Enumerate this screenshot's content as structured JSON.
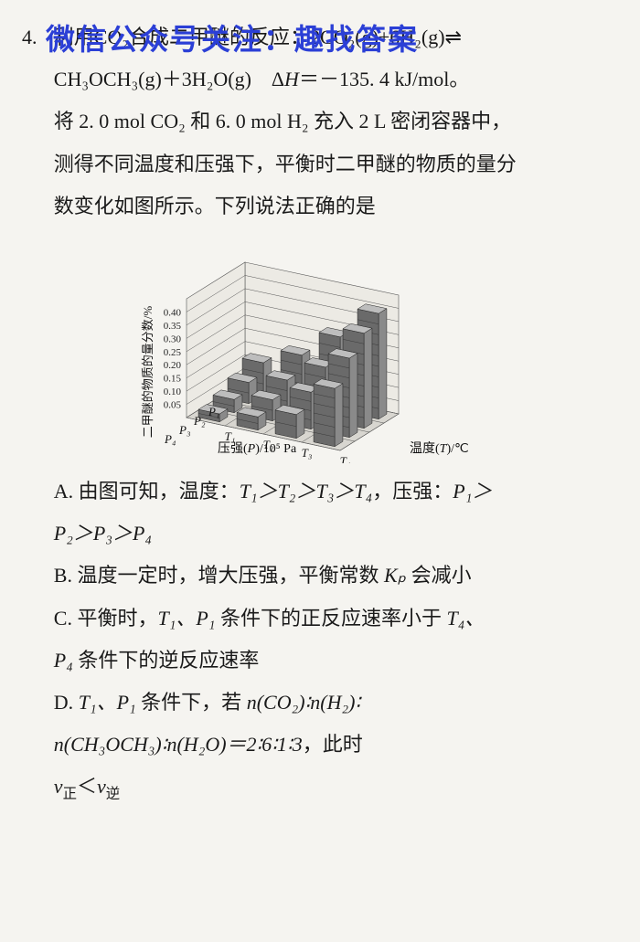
{
  "watermark": "微信公众号关注：趣找答案",
  "question_number": "4.",
  "stem_line1_a": "利用CO₂合成二甲醚的反应：2CO₂(g)+6H₂(g)⇌",
  "stem_line1_b": "CH₃OCH₃(g)＋3H₂O(g) Δ",
  "stem_line1_h": "H",
  "stem_line1_c": "＝－135. 4 kJ/mol。",
  "stem_line2": "将 2. 0 mol CO₂ 和 6. 0 mol H₂ 充入 2 L 密闭容器中，",
  "stem_line3": "测得不同温度和压强下，平衡时二甲醚的物质的量分",
  "stem_line4": "数变化如图所示。下列说法正确的是",
  "chart": {
    "type": "3d-bar",
    "y_label": "二甲醚的物质的量分数/%",
    "x1_label": "压强(",
    "x1_label_var": "P",
    "x1_label_unit": ")/10⁵ Pa",
    "x2_label": "温度(",
    "x2_label_var": "T",
    "x2_label_unit": ")/℃",
    "y_ticks": [
      "0.05",
      "0.10",
      "0.15",
      "0.20",
      "0.25",
      "0.30",
      "0.35",
      "0.40"
    ],
    "p_ticks": [
      "P₁",
      "P₂",
      "P₃",
      "P₄"
    ],
    "t_ticks": [
      "T₁",
      "T₂",
      "T₃",
      "T₄"
    ],
    "bar_fill": "#6a6a6a",
    "bar_pattern": "#3a3a3a",
    "grid_color": "#555555",
    "floor_color": "#d8d6d0",
    "wall_color": "#eceae4",
    "heights": [
      [
        0.12,
        0.18,
        0.28,
        0.4
      ],
      [
        0.08,
        0.12,
        0.2,
        0.36
      ],
      [
        0.05,
        0.08,
        0.14,
        0.3
      ],
      [
        0.03,
        0.05,
        0.09,
        0.22
      ]
    ],
    "y_max": 0.45
  },
  "optA_1": "A. 由图可知，温度：",
  "optA_2": "T₁＞T₂＞T₃＞T₄",
  "optA_3": "，压强：",
  "optA_4": "P₁＞",
  "optA_5": "P₂＞P₃＞P₄",
  "optB_1": "B. 温度一定时，增大压强，平衡常数 ",
  "optB_Kp": "Kₚ",
  "optB_2": " 会减小",
  "optC_1": "C. 平衡时，",
  "optC_2": "T₁、P₁",
  "optC_3": " 条件下的正反应速率小于 ",
  "optC_4": "T₄、",
  "optC_5": "P₄",
  "optC_6": " 条件下的逆反应速率",
  "optD_1": "D. ",
  "optD_2": "T₁、P₁",
  "optD_3": " 条件下，若 ",
  "optD_4": "n(CO₂)∶n(H₂)∶",
  "optD_5": "n(CH₃OCH₃)∶n(H₂O)＝2∶6∶1∶3",
  "optD_6": "，此时",
  "optD_7a": "v",
  "optD_7b": "正",
  "optD_7c": "＜",
  "optD_7d": "v",
  "optD_7e": "逆"
}
